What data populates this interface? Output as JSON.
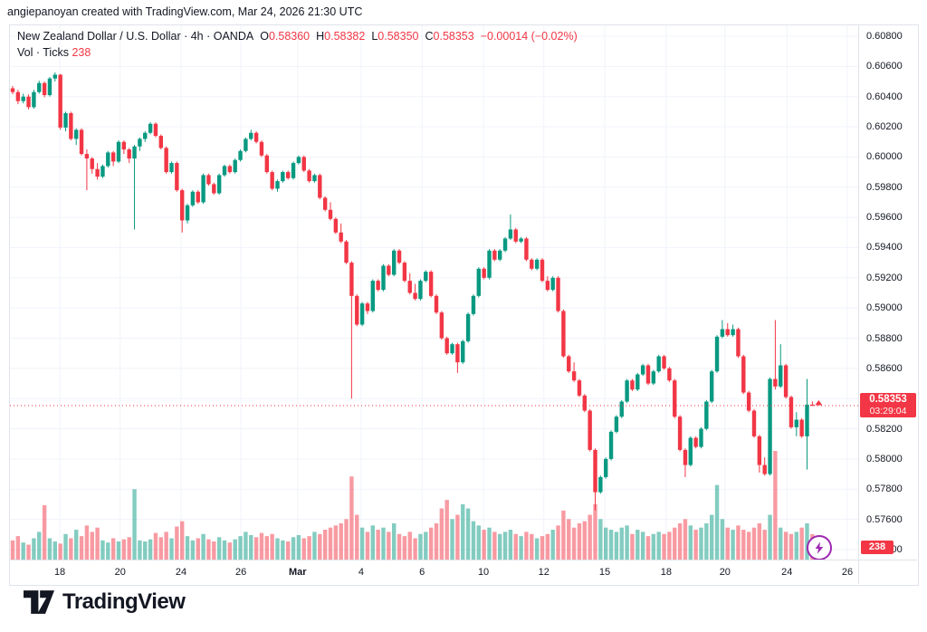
{
  "watermark": "angiepanoyan created with TradingView.com, Mar 24, 2026 21:30 UTC",
  "legend": {
    "title": "New Zealand Dollar / U.S. Dollar · 4h · OANDA",
    "ohlc": [
      {
        "k": "O",
        "v": "0.58360"
      },
      {
        "k": "H",
        "v": "0.58382"
      },
      {
        "k": "L",
        "v": "0.58350"
      },
      {
        "k": "C",
        "v": "0.58353"
      }
    ],
    "change": "−0.00014 (−0.02%)",
    "vol_label": "Vol · Ticks",
    "vol_value": "238"
  },
  "price_axis": {
    "labels": [
      "0.60800",
      "0.60600",
      "0.60400",
      "0.60200",
      "0.60000",
      "0.59800",
      "0.59600",
      "0.59400",
      "0.59200",
      "0.59000",
      "0.58800",
      "0.58600",
      "0.58400",
      "0.58200",
      "0.58000",
      "0.57800",
      "0.57600",
      "0.57400"
    ],
    "current_price": "0.58353",
    "countdown": "03:29:04",
    "volume_badge": "238"
  },
  "time_axis": {
    "ticks": [
      {
        "label": "18",
        "i": 8.9
      },
      {
        "label": "20",
        "i": 20.3
      },
      {
        "label": "24",
        "i": 31.8
      },
      {
        "label": "26",
        "i": 43.1
      },
      {
        "label": "Mar",
        "i": 53.8,
        "bold": true
      },
      {
        "label": "4",
        "i": 65.8
      },
      {
        "label": "6",
        "i": 77.3
      },
      {
        "label": "10",
        "i": 88.9
      },
      {
        "label": "12",
        "i": 100.3
      },
      {
        "label": "15",
        "i": 111.8
      },
      {
        "label": "18",
        "i": 123.4
      },
      {
        "label": "20",
        "i": 134.5
      },
      {
        "label": "24",
        "i": 146.2
      },
      {
        "label": "26",
        "i": 157.6
      }
    ]
  },
  "colors": {
    "up": "#089981",
    "down": "#f23645",
    "volume_up": "rgba(8,153,129,0.5)",
    "volume_down": "rgba(242,54,69,0.5)",
    "grid": "#f0f3fa",
    "border": "#e0e3eb",
    "text": "#131722",
    "price_line": "#f23645",
    "boost_purple": "#9c27b0",
    "logo": "#131722"
  },
  "chart_data": {
    "type": "candlestick",
    "title": "New Zealand Dollar / U.S. Dollar",
    "interval": "4h",
    "exchange": "OANDA",
    "volume_unit": "Ticks",
    "price_min": 0.574,
    "price_max": 0.608,
    "price_step": 0.002,
    "current_price": 0.58353,
    "last_volume": 238,
    "candles": [
      [
        0.60455,
        0.6047,
        0.60415,
        0.6043,
        180
      ],
      [
        0.6043,
        0.60445,
        0.6035,
        0.6037,
        220
      ],
      [
        0.6037,
        0.6042,
        0.60355,
        0.604,
        160
      ],
      [
        0.604,
        0.60415,
        0.60315,
        0.6033,
        140
      ],
      [
        0.6033,
        0.60445,
        0.6032,
        0.6043,
        200
      ],
      [
        0.6043,
        0.60505,
        0.6042,
        0.6049,
        260
      ],
      [
        0.6049,
        0.605,
        0.60395,
        0.6041,
        510
      ],
      [
        0.6041,
        0.6053,
        0.604,
        0.6052,
        200
      ],
      [
        0.6052,
        0.6056,
        0.605,
        0.60545,
        170
      ],
      [
        0.60545,
        0.6055,
        0.6018,
        0.60195,
        150
      ],
      [
        0.60195,
        0.603,
        0.6017,
        0.6029,
        240
      ],
      [
        0.6029,
        0.603,
        0.6011,
        0.6012,
        200
      ],
      [
        0.6012,
        0.6019,
        0.6008,
        0.6018,
        280
      ],
      [
        0.6018,
        0.6019,
        0.6001,
        0.6002,
        220
      ],
      [
        0.6002,
        0.6005,
        0.5978,
        0.5999,
        320
      ],
      [
        0.5999,
        0.6,
        0.5989,
        0.5992,
        260
      ],
      [
        0.5992,
        0.5996,
        0.5985,
        0.5987,
        300
      ],
      [
        0.5987,
        0.5995,
        0.5986,
        0.5994,
        180
      ],
      [
        0.5994,
        0.6004,
        0.5993,
        0.6003,
        160
      ],
      [
        0.6003,
        0.6004,
        0.5994,
        0.5997,
        200
      ],
      [
        0.5997,
        0.6011,
        0.5996,
        0.601,
        170
      ],
      [
        0.601,
        0.6011,
        0.6002,
        0.6005,
        190
      ],
      [
        0.6005,
        0.6006,
        0.5996,
        0.5999,
        210
      ],
      [
        0.5999,
        0.6008,
        0.5952,
        0.6007,
        660
      ],
      [
        0.6007,
        0.6013,
        0.6004,
        0.6012,
        180
      ],
      [
        0.6012,
        0.6017,
        0.601,
        0.6016,
        170
      ],
      [
        0.6016,
        0.6023,
        0.6015,
        0.6022,
        190
      ],
      [
        0.6022,
        0.6023,
        0.6013,
        0.6014,
        250
      ],
      [
        0.6014,
        0.6015,
        0.6005,
        0.6006,
        210
      ],
      [
        0.6006,
        0.6007,
        0.5989,
        0.599,
        260
      ],
      [
        0.599,
        0.5997,
        0.5989,
        0.5996,
        200
      ],
      [
        0.5996,
        0.5997,
        0.5977,
        0.5978,
        310
      ],
      [
        0.5978,
        0.5979,
        0.595,
        0.5958,
        360
      ],
      [
        0.5958,
        0.5969,
        0.5956,
        0.5968,
        220
      ],
      [
        0.5968,
        0.5978,
        0.5967,
        0.5977,
        180
      ],
      [
        0.5977,
        0.5978,
        0.5969,
        0.597,
        200
      ],
      [
        0.597,
        0.5989,
        0.5969,
        0.5988,
        240
      ],
      [
        0.5988,
        0.5989,
        0.5981,
        0.5982,
        190
      ],
      [
        0.5982,
        0.5983,
        0.5975,
        0.5976,
        170
      ],
      [
        0.5976,
        0.5989,
        0.5975,
        0.5988,
        210
      ],
      [
        0.5988,
        0.5995,
        0.5987,
        0.5994,
        180
      ],
      [
        0.5994,
        0.5995,
        0.5989,
        0.599,
        160
      ],
      [
        0.599,
        0.5999,
        0.5989,
        0.5998,
        190
      ],
      [
        0.5998,
        0.6005,
        0.5997,
        0.6004,
        220
      ],
      [
        0.6004,
        0.6013,
        0.6003,
        0.6012,
        260
      ],
      [
        0.6012,
        0.6018,
        0.6011,
        0.6016,
        230
      ],
      [
        0.6016,
        0.6017,
        0.6009,
        0.601,
        210
      ],
      [
        0.601,
        0.6011,
        0.6,
        0.6001,
        250
      ],
      [
        0.6001,
        0.6002,
        0.5989,
        0.599,
        220
      ],
      [
        0.599,
        0.5991,
        0.5978,
        0.5979,
        240
      ],
      [
        0.5979,
        0.5985,
        0.5977,
        0.5984,
        200
      ],
      [
        0.5984,
        0.5991,
        0.5983,
        0.599,
        180
      ],
      [
        0.599,
        0.5991,
        0.5985,
        0.5986,
        170
      ],
      [
        0.5986,
        0.5997,
        0.5985,
        0.5996,
        210
      ],
      [
        0.5996,
        0.6001,
        0.5995,
        0.6,
        230
      ],
      [
        0.6,
        0.6001,
        0.599,
        0.5991,
        200
      ],
      [
        0.5991,
        0.5992,
        0.5983,
        0.5984,
        220
      ],
      [
        0.5984,
        0.5989,
        0.5983,
        0.5988,
        260
      ],
      [
        0.5988,
        0.5989,
        0.5972,
        0.5973,
        240
      ],
      [
        0.5973,
        0.5974,
        0.5964,
        0.5965,
        280
      ],
      [
        0.5965,
        0.597,
        0.5958,
        0.5959,
        300
      ],
      [
        0.5959,
        0.596,
        0.5949,
        0.595,
        320
      ],
      [
        0.595,
        0.5956,
        0.5943,
        0.5944,
        340
      ],
      [
        0.5944,
        0.5945,
        0.5929,
        0.593,
        380
      ],
      [
        0.593,
        0.5931,
        0.584,
        0.5908,
        780
      ],
      [
        0.5908,
        0.5909,
        0.5888,
        0.5889,
        420
      ],
      [
        0.5889,
        0.5904,
        0.5888,
        0.5903,
        300
      ],
      [
        0.5903,
        0.5904,
        0.5896,
        0.5898,
        260
      ],
      [
        0.5898,
        0.5919,
        0.5897,
        0.5918,
        320
      ],
      [
        0.5918,
        0.5919,
        0.5911,
        0.5912,
        280
      ],
      [
        0.5912,
        0.5929,
        0.5911,
        0.5928,
        300
      ],
      [
        0.5928,
        0.5929,
        0.5921,
        0.5922,
        260
      ],
      [
        0.5922,
        0.5939,
        0.5921,
        0.5938,
        340
      ],
      [
        0.5938,
        0.5939,
        0.5929,
        0.593,
        240
      ],
      [
        0.593,
        0.5931,
        0.5917,
        0.5918,
        220
      ],
      [
        0.5918,
        0.5923,
        0.5909,
        0.591,
        260
      ],
      [
        0.591,
        0.5916,
        0.5905,
        0.5906,
        200
      ],
      [
        0.5906,
        0.5919,
        0.5905,
        0.5918,
        240
      ],
      [
        0.5918,
        0.5925,
        0.5917,
        0.5924,
        260
      ],
      [
        0.5924,
        0.5925,
        0.5907,
        0.5908,
        300
      ],
      [
        0.5908,
        0.5909,
        0.5896,
        0.5897,
        340
      ],
      [
        0.5897,
        0.5898,
        0.5879,
        0.588,
        480
      ],
      [
        0.588,
        0.5881,
        0.5869,
        0.587,
        560
      ],
      [
        0.587,
        0.5877,
        0.5869,
        0.5876,
        380
      ],
      [
        0.5876,
        0.5877,
        0.5857,
        0.5864,
        420
      ],
      [
        0.5864,
        0.5879,
        0.5863,
        0.5878,
        520
      ],
      [
        0.5878,
        0.5897,
        0.5877,
        0.5896,
        480
      ],
      [
        0.5896,
        0.5909,
        0.5895,
        0.5908,
        360
      ],
      [
        0.5908,
        0.5927,
        0.5907,
        0.5926,
        320
      ],
      [
        0.5926,
        0.5927,
        0.5919,
        0.592,
        280
      ],
      [
        0.592,
        0.5939,
        0.5919,
        0.5938,
        300
      ],
      [
        0.5938,
        0.5939,
        0.5931,
        0.5932,
        260
      ],
      [
        0.5932,
        0.5939,
        0.5931,
        0.5938,
        240
      ],
      [
        0.5938,
        0.5947,
        0.5937,
        0.5946,
        260
      ],
      [
        0.5946,
        0.5962,
        0.5945,
        0.5952,
        280
      ],
      [
        0.5952,
        0.5953,
        0.5943,
        0.5944,
        240
      ],
      [
        0.5944,
        0.5947,
        0.5943,
        0.5946,
        220
      ],
      [
        0.5946,
        0.5947,
        0.5931,
        0.5932,
        260
      ],
      [
        0.5932,
        0.5933,
        0.5925,
        0.5926,
        240
      ],
      [
        0.5926,
        0.5933,
        0.5925,
        0.5932,
        200
      ],
      [
        0.5932,
        0.5933,
        0.5917,
        0.5918,
        220
      ],
      [
        0.5918,
        0.5921,
        0.5911,
        0.5912,
        240
      ],
      [
        0.5912,
        0.5921,
        0.5911,
        0.592,
        280
      ],
      [
        0.592,
        0.5921,
        0.5897,
        0.5898,
        320
      ],
      [
        0.5898,
        0.5899,
        0.5867,
        0.5868,
        460
      ],
      [
        0.5868,
        0.5869,
        0.5857,
        0.5858,
        380
      ],
      [
        0.5858,
        0.5864,
        0.5851,
        0.5852,
        300
      ],
      [
        0.5852,
        0.5853,
        0.5841,
        0.5842,
        340
      ],
      [
        0.5842,
        0.5843,
        0.5831,
        0.5832,
        360
      ],
      [
        0.5832,
        0.5833,
        0.5805,
        0.5806,
        420
      ],
      [
        0.5806,
        0.5807,
        0.5766,
        0.5778,
        520
      ],
      [
        0.5778,
        0.5789,
        0.5777,
        0.5788,
        380
      ],
      [
        0.5788,
        0.5801,
        0.5787,
        0.58,
        300
      ],
      [
        0.58,
        0.5819,
        0.5799,
        0.5818,
        280
      ],
      [
        0.5818,
        0.5829,
        0.5817,
        0.5828,
        260
      ],
      [
        0.5828,
        0.5839,
        0.5827,
        0.5838,
        300
      ],
      [
        0.5838,
        0.5853,
        0.5837,
        0.5852,
        320
      ],
      [
        0.5852,
        0.5853,
        0.5845,
        0.5846,
        240
      ],
      [
        0.5846,
        0.5857,
        0.5845,
        0.5856,
        280
      ],
      [
        0.5856,
        0.5863,
        0.5855,
        0.5862,
        260
      ],
      [
        0.5862,
        0.5863,
        0.5849,
        0.585,
        220
      ],
      [
        0.585,
        0.5859,
        0.5849,
        0.5858,
        240
      ],
      [
        0.5858,
        0.5869,
        0.5857,
        0.5868,
        260
      ],
      [
        0.5868,
        0.5869,
        0.5859,
        0.586,
        240
      ],
      [
        0.586,
        0.5861,
        0.5851,
        0.5852,
        260
      ],
      [
        0.5852,
        0.5853,
        0.5827,
        0.5828,
        300
      ],
      [
        0.5828,
        0.5829,
        0.5805,
        0.5806,
        340
      ],
      [
        0.5806,
        0.5807,
        0.5788,
        0.5796,
        380
      ],
      [
        0.5796,
        0.5815,
        0.5795,
        0.5814,
        320
      ],
      [
        0.5814,
        0.5815,
        0.5807,
        0.5808,
        280
      ],
      [
        0.5808,
        0.5821,
        0.5807,
        0.582,
        300
      ],
      [
        0.582,
        0.5839,
        0.5819,
        0.5838,
        340
      ],
      [
        0.5838,
        0.5859,
        0.5837,
        0.5858,
        420
      ],
      [
        0.5858,
        0.5882,
        0.5857,
        0.5881,
        700
      ],
      [
        0.5881,
        0.5892,
        0.588,
        0.5886,
        380
      ],
      [
        0.5886,
        0.589,
        0.5881,
        0.5882,
        300
      ],
      [
        0.5882,
        0.5889,
        0.5881,
        0.5886,
        280
      ],
      [
        0.5886,
        0.5887,
        0.5867,
        0.5868,
        320
      ],
      [
        0.5868,
        0.5869,
        0.5843,
        0.5844,
        280
      ],
      [
        0.5844,
        0.5845,
        0.5831,
        0.5832,
        260
      ],
      [
        0.5832,
        0.5833,
        0.5814,
        0.5815,
        300
      ],
      [
        0.5815,
        0.5816,
        0.5791,
        0.5796,
        340
      ],
      [
        0.5796,
        0.5801,
        0.5789,
        0.579,
        280
      ],
      [
        0.579,
        0.5854,
        0.5789,
        0.5853,
        420
      ],
      [
        0.5853,
        0.5892,
        0.5846,
        0.5848,
        1020
      ],
      [
        0.5848,
        0.5876,
        0.5847,
        0.5862,
        300
      ],
      [
        0.5862,
        0.5863,
        0.584,
        0.5841,
        260
      ],
      [
        0.5841,
        0.5842,
        0.582,
        0.5821,
        240
      ],
      [
        0.5821,
        0.5831,
        0.5815,
        0.5826,
        260
      ],
      [
        0.5826,
        0.5827,
        0.5814,
        0.5815,
        300
      ],
      [
        0.5815,
        0.5853,
        0.5793,
        0.5836,
        340
      ],
      [
        0.5836,
        0.58382,
        0.5835,
        0.58353,
        238
      ]
    ]
  },
  "footer": {
    "logo_text": "TradingView"
  }
}
